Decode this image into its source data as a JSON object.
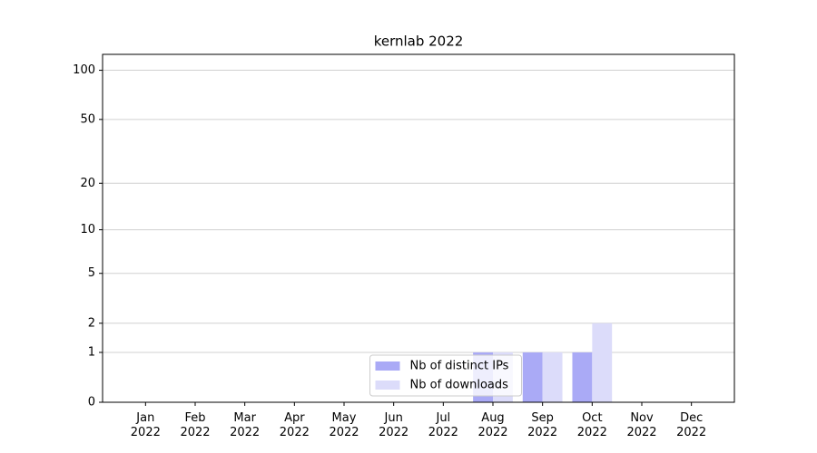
{
  "chart_data": {
    "type": "bar",
    "title": "kernlab 2022",
    "categories": [
      "Jan 2022",
      "Feb 2022",
      "Mar 2022",
      "Apr 2022",
      "May 2022",
      "Jun 2022",
      "Jul 2022",
      "Aug 2022",
      "Sep 2022",
      "Oct 2022",
      "Nov 2022",
      "Dec 2022"
    ],
    "series": [
      {
        "name": "Nb of distinct IPs",
        "color": "#aaaaf6",
        "values": [
          0,
          0,
          0,
          0,
          0,
          0,
          0,
          1,
          1,
          1,
          0,
          0
        ]
      },
      {
        "name": "Nb of downloads",
        "color": "#dcdcfa",
        "values": [
          0,
          0,
          0,
          0,
          0,
          0,
          0,
          1,
          1,
          2,
          0,
          0
        ]
      }
    ],
    "yscale": "log1p",
    "ylim": [
      0,
      125
    ],
    "yticks": [
      0,
      1,
      2,
      5,
      10,
      20,
      50,
      100
    ],
    "grid": true,
    "legend": "lower center"
  }
}
